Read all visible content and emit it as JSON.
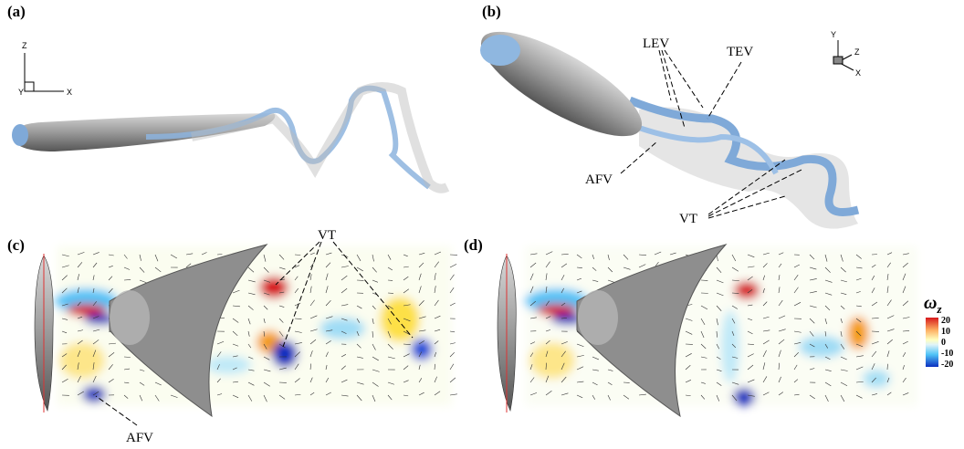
{
  "panels": [
    {
      "label": "(a)",
      "axes": [
        "Z",
        "Y",
        "X"
      ]
    },
    {
      "label": "(b)",
      "axes": [
        "Y",
        "Z",
        "X"
      ],
      "annotations": [
        "LEV",
        "TEV",
        "AFV",
        "VT"
      ]
    },
    {
      "label": "(c)",
      "annotations": [
        "VT",
        "AFV"
      ]
    },
    {
      "label": "(d)"
    }
  ],
  "colorbar": {
    "symbol": "ω",
    "subscript": "z",
    "ticks": [
      "20",
      "10",
      "0",
      "-10",
      "-20"
    ]
  }
}
